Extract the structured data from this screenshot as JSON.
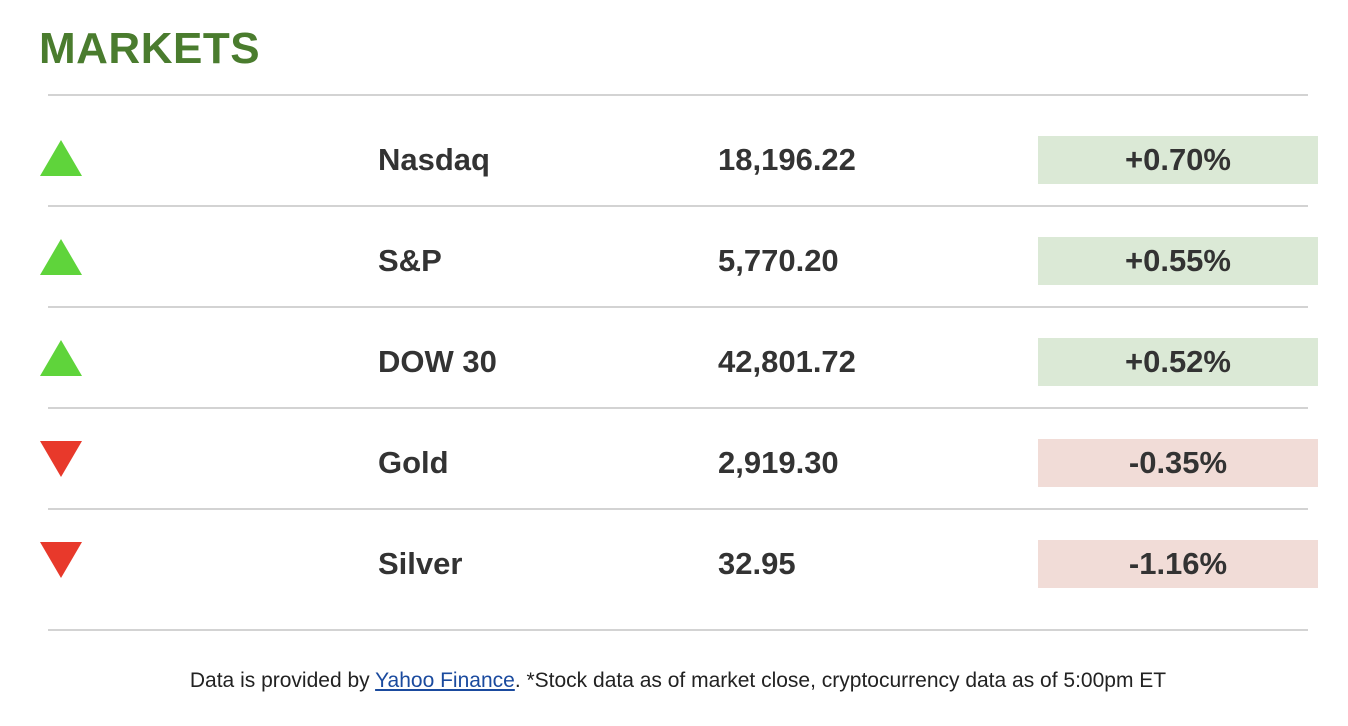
{
  "title": "MARKETS",
  "colors": {
    "title": "#4a7c2e",
    "up_arrow": "#5fd43b",
    "down_arrow": "#e8392b",
    "up_bg": "#dbe9d6",
    "down_bg": "#f1dcd7",
    "divider": "#d3d3d3",
    "link": "#1a4a9e"
  },
  "markets": [
    {
      "name": "Nasdaq",
      "value": "18,196.22",
      "change": "+0.70%",
      "direction": "up",
      "icon": "triangle-up-icon"
    },
    {
      "name": "S&P",
      "value": "5,770.20",
      "change": "+0.55%",
      "direction": "up",
      "icon": "triangle-up-icon"
    },
    {
      "name": "DOW 30",
      "value": "42,801.72",
      "change": "+0.52%",
      "direction": "up",
      "icon": "triangle-up-icon"
    },
    {
      "name": "Gold",
      "value": "2,919.30",
      "change": "-0.35%",
      "direction": "down",
      "icon": "triangle-down-icon"
    },
    {
      "name": "Silver",
      "value": "32.95",
      "change": "-1.16%",
      "direction": "down",
      "icon": "triangle-down-icon"
    }
  ],
  "footer": {
    "prefix": "Data is provided by ",
    "link_text": "Yahoo Finance",
    "suffix": ". *Stock data as of market close, cryptocurrency data as of 5:00pm ET"
  }
}
